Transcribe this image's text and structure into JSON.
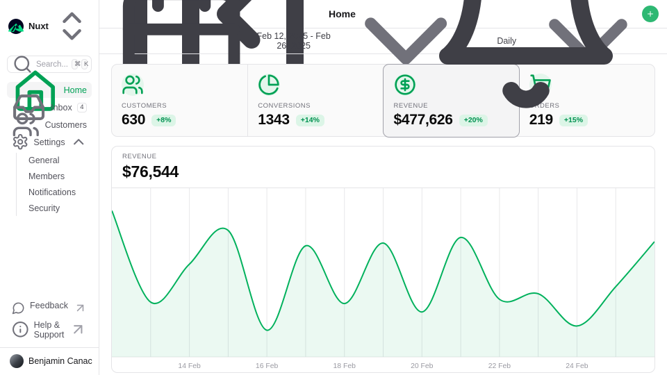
{
  "sidebar": {
    "workspace_name": "Nuxt",
    "search": {
      "placeholder": "Search...",
      "kbd": [
        "⌘",
        "K"
      ]
    },
    "nav": [
      {
        "label": "Home",
        "icon": "house-icon",
        "active": true
      },
      {
        "label": "Inbox",
        "icon": "inbox-icon",
        "badge": "4"
      },
      {
        "label": "Customers",
        "icon": "users-icon"
      },
      {
        "label": "Settings",
        "icon": "gear-icon",
        "expanded": true,
        "children": [
          "General",
          "Members",
          "Notifications",
          "Security"
        ]
      }
    ],
    "footer_links": [
      {
        "label": "Feedback",
        "icon": "message-circle-icon",
        "external": true
      },
      {
        "label": "Help & Support",
        "icon": "info-icon",
        "external": true
      }
    ],
    "user": {
      "name": "Benjamin Canac"
    }
  },
  "header": {
    "title": "Home",
    "has_notification_dot": true
  },
  "toolbar": {
    "date_range": "Feb 12, 2025 - Feb 26, 2025",
    "granularity": "Daily"
  },
  "stats": [
    {
      "label": "CUSTOMERS",
      "value": "630",
      "delta": "+8%",
      "icon": "users-icon"
    },
    {
      "label": "CONVERSIONS",
      "value": "1343",
      "delta": "+14%",
      "icon": "pie-chart-icon"
    },
    {
      "label": "REVENUE",
      "value": "$477,626",
      "delta": "+20%",
      "icon": "dollar-circle-icon",
      "selected": true
    },
    {
      "label": "ORDERS",
      "value": "219",
      "delta": "+15%",
      "icon": "cart-icon"
    }
  ],
  "chart": {
    "label": "REVENUE",
    "value": "$76,544"
  },
  "chart_data": {
    "type": "area",
    "title": "REVENUE",
    "x": [
      "Feb 12",
      "Feb 13",
      "Feb 14",
      "Feb 15",
      "Feb 16",
      "Feb 17",
      "Feb 18",
      "Feb 19",
      "Feb 20",
      "Feb 21",
      "Feb 22",
      "Feb 23",
      "Feb 24",
      "Feb 25",
      "Feb 26"
    ],
    "values": [
      92000,
      59500,
      73000,
      85000,
      49500,
      79500,
      59000,
      80500,
      56000,
      82500,
      60500,
      62500,
      51000,
      65000,
      81000
    ],
    "ylim": [
      40000,
      100000
    ],
    "xtick_labels": [
      "14 Feb",
      "16 Feb",
      "18 Feb",
      "20 Feb",
      "22 Feb",
      "24 Feb"
    ],
    "xtick_indices": [
      2,
      4,
      6,
      8,
      10,
      12
    ],
    "grid": "vertical-daily",
    "legend": "none",
    "line_color": "#00b15c",
    "fill_color": "rgba(0,177,92,0.08)",
    "grid_color": "#e7e7ea",
    "tick_color": "#9a9aa2"
  },
  "colors": {
    "accent_green": "#00a155",
    "nuxt_green": "#00DC82",
    "badge_bg": "#dcf5e7",
    "border": "#e4e4e7",
    "notification_red": "#f0433a",
    "plus_button": "#2eb873"
  }
}
